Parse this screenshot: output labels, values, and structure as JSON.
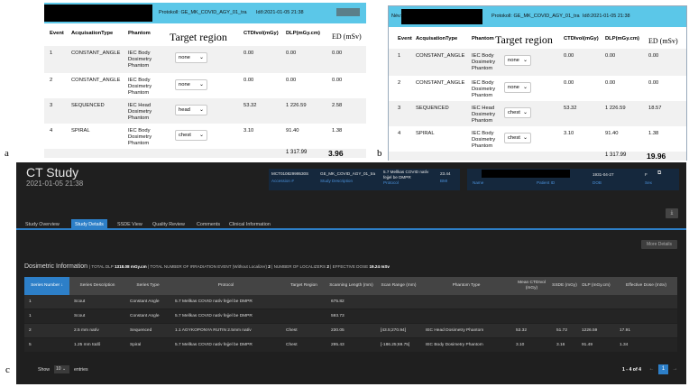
{
  "panel_a": {
    "label": "a",
    "protocol": "Protokoll: GE_MK_COVID_AGY_01_tra",
    "date": "Idő:2021-01-05 21:38",
    "headers": [
      "Event",
      "AcquisationType",
      "Phantom",
      "Target region",
      "CTDIvol(mGy)",
      "DLP(mGy.cm)",
      "ED (mSv)"
    ],
    "rows": [
      {
        "event": "1",
        "type": "CONSTANT_ANGLE",
        "phantom": "IEC Body Dosimetry Phantom",
        "region": "none",
        "ctdi": "0.00",
        "dlp": "0.00",
        "ed": "0.00"
      },
      {
        "event": "2",
        "type": "CONSTANT_ANGLE",
        "phantom": "IEC Body Dosimetry Phantom",
        "region": "none",
        "ctdi": "0.00",
        "dlp": "0.00",
        "ed": "0.00"
      },
      {
        "event": "3",
        "type": "SEQUENCED",
        "phantom": "IEC Head Dosimetry Phantom",
        "region": "head",
        "ctdi": "53.32",
        "dlp": "1 226.59",
        "ed": "2.58"
      },
      {
        "event": "4",
        "type": "SPIRAL",
        "phantom": "IEC Body Dosimetry Phantom",
        "region": "chest",
        "ctdi": "3.10",
        "dlp": "91.40",
        "ed": "1.38"
      }
    ],
    "total_dlp": "1 317.99",
    "total_ed": "3.96"
  },
  "panel_b": {
    "label": "b",
    "name_label": "Név:",
    "protocol": "Protokoll: GE_MK_COVID_AGY_01_tra",
    "date": "Idő:2021-01-05 21:38",
    "headers": [
      "Event",
      "AcquisationType",
      "Phantom",
      "Target region",
      "CTDIvol(mGy)",
      "DLP(mGy.cm)",
      "ED (mSv)"
    ],
    "rows": [
      {
        "event": "1",
        "type": "CONSTANT_ANGLE",
        "phantom": "IEC Body Dosimetry Phantom",
        "region": "none",
        "ctdi": "0.00",
        "dlp": "0.00",
        "ed": "0.00"
      },
      {
        "event": "2",
        "type": "CONSTANT_ANGLE",
        "phantom": "IEC Body Dosimetry Phantom",
        "region": "none",
        "ctdi": "0.00",
        "dlp": "0.00",
        "ed": "0.00"
      },
      {
        "event": "3",
        "type": "SEQUENCED",
        "phantom": "IEC Head Dosimetry Phantom",
        "region": "chest",
        "ctdi": "53.32",
        "dlp": "1 226.59",
        "ed": "18.57"
      },
      {
        "event": "4",
        "type": "SPIRAL",
        "phantom": "IEC Body Dosimetry Phantom",
        "region": "chest",
        "ctdi": "3.10",
        "dlp": "91.40",
        "ed": "1.38"
      }
    ],
    "total_dlp": "1 317.99",
    "total_ed": "19.96"
  },
  "panel_c": {
    "label": "c",
    "title": "CT Study",
    "date": "2021-01-05 21:38",
    "accession": "MCT01082999530S",
    "accession_label": "Accession #",
    "study_desc": "GE_MK_COVID_AGY_01_tra",
    "study_desc_label": "Study Description",
    "protocol": "5.7 Mellkas COVID natív fejjel be DMPR",
    "protocol_label": "Protocol",
    "bmi": "23.44",
    "bmi_label": "BMI",
    "name_label": "Name",
    "patient_id_label": "Patient ID",
    "dob": "1931-04-27",
    "dob_label": "DOB",
    "sex": "F",
    "sex_label": "Sex",
    "tabs": [
      "Study Overview",
      "Study Details",
      "SSDE View",
      "Quality Review",
      "Comments",
      "Clinical Information"
    ],
    "more_details": "More Details",
    "dosimetric_title": "Dosimetric Information",
    "total_dlp_label": "| TOTAL DLP",
    "total_dlp": "1318.08 mGy.cm",
    "irr_label": "| TOTAL NUMBER OF IRRADIATION EVENT (Without Localizer)",
    "irr_value": "2",
    "loc_label": "| NUMBER OF LOCALIZERS",
    "loc_value": "2",
    "ed_label": "| EFFECTIVE DOSE",
    "ed_value": "19.24 mSv",
    "headers": [
      "Series Number",
      "Series Description",
      "Series Type",
      "Protocol",
      "Target Region",
      "Scanning Length (mm)",
      "Scan Range (mm)",
      "Phantom Type",
      "Mean CTDIvol (mGy)",
      "SSDE (mGy)",
      "DLP (mGy.cm)",
      "Effective Dose (mSv)"
    ],
    "rows": [
      {
        "num": "1",
        "desc": "Scout",
        "type": "Constant Angle",
        "protocol": "5.7 Mellkas COVID natív fejjel be DMPR",
        "region": "",
        "length": "675.82",
        "range": "",
        "phantom": "",
        "ctdi": "",
        "ssde": "",
        "dlp": "",
        "ed": ""
      },
      {
        "num": "1",
        "desc": "Scout",
        "type": "Constant Angle",
        "protocol": "5.7 Mellkas COVID natív fejjel be DMPR",
        "region": "",
        "length": "593.73",
        "range": "",
        "phantom": "",
        "ctdi": "",
        "ssde": "",
        "dlp": "",
        "ed": ""
      },
      {
        "num": "2",
        "desc": "2.5 mm natív",
        "type": "Sequenced",
        "protocol": "1.1 AGYKOPONYA RUTIN 2.5mm natív",
        "region": "Chest",
        "length": "230.05",
        "range": "[43.5;270.94]",
        "phantom": "IEC Head Dosimetry Phantom",
        "ctdi": "53.32",
        "ssde": "51.72",
        "dlp": "1226.59",
        "ed": "17.91"
      },
      {
        "num": "5",
        "desc": "1.25 mm tüdő",
        "type": "Spiral",
        "protocol": "5.7 Mellkas COVID natív fejjel be DMPR",
        "region": "Chest",
        "length": "295.43",
        "range": "[-186.25;69.75]",
        "phantom": "IEC Body Dosimetry Phantom",
        "ctdi": "3.10",
        "ssde": "3.16",
        "dlp": "91.49",
        "ed": "1.34"
      }
    ],
    "show_label": "Show",
    "show_value": "10",
    "entries_label": "entries",
    "page_info": "1 - 4 of 4",
    "page_current": "1",
    "prev_icon": "←",
    "next_icon": "→",
    "accent_color": "#2d7fc8"
  }
}
